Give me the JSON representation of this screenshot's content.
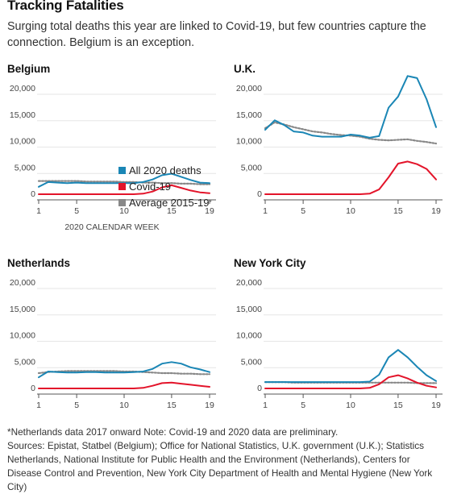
{
  "title": "Tracking Fatalities",
  "subtitle": "Surging total deaths this year are linked to Covid-19, but few countries capture the connection. Belgium is an exception.",
  "legend": {
    "all": "All 2020 deaths",
    "covid": "Covid-19",
    "avg": "Average 2015-19",
    "avg_mark": "*"
  },
  "colors": {
    "all": "#1a86b5",
    "covid": "#e3142a",
    "avg": "#888888"
  },
  "footnote": {
    "line1": "*Netherlands data 2017 onward    Note: Covid-19 and 2020 data are preliminary.",
    "line2": "Sources: Epistat, Statbel (Belgium); Office for National Statistics, U.K. government (U.K.); Statistics Netherlands, National Institute for Public Health and the Environment (Netherlands), Centers for Disease Control and Prevention, New York City Department of Health and Mental Hygiene (New York City)"
  },
  "chart_data": [
    {
      "type": "line",
      "title": "Belgium",
      "xlabel": "2020 CALENDAR WEEK",
      "x": [
        1,
        2,
        3,
        4,
        5,
        6,
        7,
        8,
        9,
        10,
        11,
        12,
        13,
        14,
        15,
        16,
        17,
        18,
        19
      ],
      "xticks": [
        1,
        5,
        10,
        15,
        19
      ],
      "yticks": [
        0,
        5000,
        10000,
        15000,
        20000
      ],
      "ytick_labels": [
        "0",
        "5,000",
        "10,000",
        "15,000",
        "20,000"
      ],
      "ylim": [
        0,
        20000
      ],
      "series": [
        {
          "name": "All 2020 deaths",
          "key": "all",
          "values": [
            1400,
            2300,
            2200,
            2100,
            2200,
            2100,
            2100,
            2100,
            2100,
            2100,
            2100,
            2300,
            2800,
            3600,
            3900,
            3300,
            2700,
            2200,
            2100
          ]
        },
        {
          "name": "Covid-19",
          "key": "covid",
          "values": [
            0,
            0,
            0,
            0,
            0,
            0,
            0,
            0,
            0,
            0,
            0,
            100,
            500,
            1300,
            1700,
            1200,
            700,
            350,
            200
          ]
        },
        {
          "name": "Average 2015-19",
          "key": "avg",
          "values": [
            2500,
            2500,
            2500,
            2500,
            2500,
            2400,
            2400,
            2400,
            2400,
            2300,
            2300,
            2200,
            2200,
            2100,
            2100,
            2000,
            2000,
            1900,
            1900
          ]
        }
      ]
    },
    {
      "type": "line",
      "title": "U.K.",
      "xlabel": "",
      "x": [
        1,
        2,
        3,
        4,
        5,
        6,
        7,
        8,
        9,
        10,
        11,
        12,
        13,
        14,
        15,
        16,
        17,
        18,
        19
      ],
      "xticks": [
        1,
        5,
        10,
        15,
        19
      ],
      "yticks": [
        0,
        5000,
        10000,
        15000,
        20000
      ],
      "ytick_labels": [
        "0",
        "5,000",
        "10,000",
        "15,000",
        "20,000"
      ],
      "ylim": [
        0,
        20000
      ],
      "series": [
        {
          "name": "All 2020 deaths",
          "key": "all",
          "values": [
            12200,
            14000,
            13100,
            11900,
            11700,
            11100,
            10900,
            10900,
            10900,
            11300,
            11100,
            10700,
            11000,
            16400,
            18500,
            22400,
            22000,
            18000,
            12700
          ]
        },
        {
          "name": "Covid-19",
          "key": "covid",
          "values": [
            0,
            0,
            0,
            0,
            0,
            0,
            0,
            0,
            0,
            0,
            0,
            100,
            900,
            3200,
            5800,
            6200,
            5700,
            4800,
            2800
          ]
        },
        {
          "name": "Average 2015-19",
          "key": "avg",
          "values": [
            12500,
            13600,
            13200,
            12700,
            12300,
            11900,
            11700,
            11400,
            11200,
            11100,
            10900,
            10500,
            10300,
            10200,
            10300,
            10400,
            10100,
            9900,
            9600
          ]
        }
      ]
    },
    {
      "type": "line",
      "title": "Netherlands",
      "xlabel": "",
      "x": [
        1,
        2,
        3,
        4,
        5,
        6,
        7,
        8,
        9,
        10,
        11,
        12,
        13,
        14,
        15,
        16,
        17,
        18,
        19
      ],
      "xticks": [
        1,
        5,
        10,
        15,
        19
      ],
      "yticks": [
        0,
        5000,
        10000,
        15000,
        20000
      ],
      "ytick_labels": [
        "0",
        "5,000",
        "10,000",
        "15,000",
        "20,000"
      ],
      "ylim": [
        0,
        20000
      ],
      "series": [
        {
          "name": "All 2020 deaths",
          "key": "all",
          "values": [
            2100,
            3200,
            3100,
            3000,
            3000,
            3100,
            3100,
            3000,
            3000,
            3000,
            3100,
            3200,
            3700,
            4700,
            5000,
            4700,
            4000,
            3600,
            3100
          ]
        },
        {
          "name": "Covid-19",
          "key": "covid",
          "values": [
            0,
            0,
            0,
            0,
            0,
            0,
            0,
            0,
            0,
            0,
            0,
            100,
            500,
            1000,
            1100,
            900,
            700,
            500,
            300
          ]
        },
        {
          "name": "Average 2015-19",
          "key": "avg",
          "values": [
            2900,
            3100,
            3200,
            3300,
            3300,
            3300,
            3300,
            3300,
            3300,
            3200,
            3200,
            3100,
            3000,
            2900,
            2900,
            2800,
            2800,
            2700,
            2700
          ]
        }
      ]
    },
    {
      "type": "line",
      "title": "New York City",
      "xlabel": "",
      "x": [
        1,
        2,
        3,
        4,
        5,
        6,
        7,
        8,
        9,
        10,
        11,
        12,
        13,
        14,
        15,
        16,
        17,
        18,
        19
      ],
      "xticks": [
        1,
        5,
        10,
        15,
        19
      ],
      "yticks": [
        0,
        5000,
        10000,
        15000,
        20000
      ],
      "ytick_labels": [
        "0",
        "5,000",
        "10,000",
        "15,000",
        "20,000"
      ],
      "ylim": [
        0,
        20000
      ],
      "series": [
        {
          "name": "All 2020 deaths",
          "key": "all",
          "values": [
            1200,
            1200,
            1200,
            1200,
            1200,
            1200,
            1200,
            1200,
            1200,
            1200,
            1200,
            1300,
            2600,
            5900,
            7300,
            5900,
            4100,
            2500,
            1400
          ]
        },
        {
          "name": "Covid-19",
          "key": "covid",
          "values": [
            0,
            0,
            0,
            0,
            0,
            0,
            0,
            0,
            0,
            0,
            0,
            100,
            800,
            2100,
            2500,
            1900,
            1100,
            500,
            200
          ]
        },
        {
          "name": "Average 2015-19",
          "key": "avg",
          "values": [
            1200,
            1200,
            1200,
            1100,
            1100,
            1100,
            1100,
            1100,
            1100,
            1100,
            1100,
            1100,
            1100,
            1100,
            1100,
            1100,
            1000,
            1000,
            1000
          ]
        }
      ]
    }
  ]
}
